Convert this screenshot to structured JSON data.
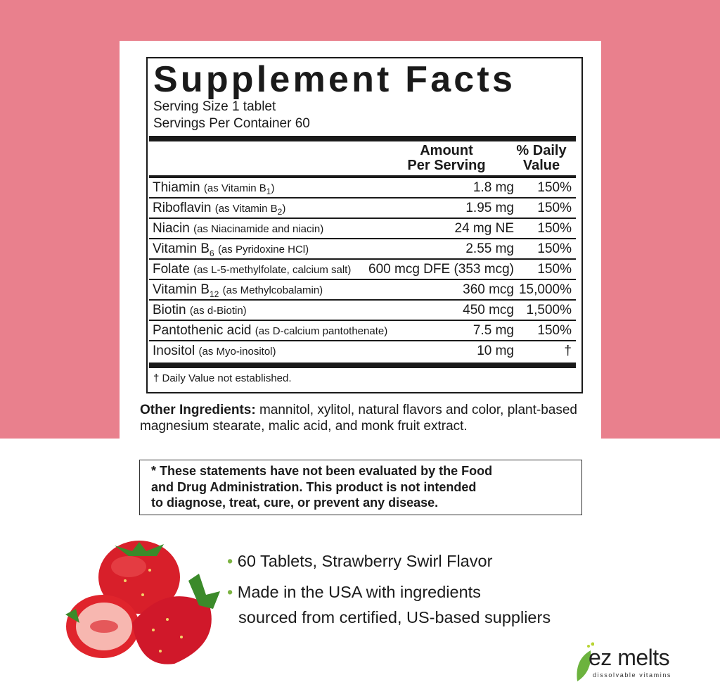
{
  "label": {
    "title": "Supplement Facts",
    "serving_size": "Serving Size 1 tablet",
    "servings_per_container": "Servings Per Container 60",
    "col_amount_1": "Amount",
    "col_amount_2": "Per Serving",
    "col_dv_1": "% Daily",
    "col_dv_2": "Value",
    "rows": [
      {
        "name": "Thiamin",
        "pre": "(as Vitamin B",
        "sub": "1",
        "post": ")",
        "amount": "1.8 mg",
        "dv": "150%"
      },
      {
        "name": "Riboflavin",
        "pre": "(as Vitamin B",
        "sub": "2",
        "post": ")",
        "amount": "1.95 mg",
        "dv": "150%"
      },
      {
        "name": "Niacin",
        "pre": "(as Niacinamide and niacin)",
        "sub": "",
        "post": "",
        "amount": "24 mg NE",
        "dv": "150%"
      },
      {
        "name": "Vitamin B",
        "namesub": "6",
        "pre": "(as Pyridoxine HCl)",
        "amount": "2.55 mg",
        "dv": "150%"
      },
      {
        "name": "Folate",
        "pre": "(as L-5-methylfolate, calcium salt)",
        "amount": "600 mcg DFE (353 mcg)",
        "dv": "150%"
      },
      {
        "name": "Vitamin B",
        "namesub": "12",
        "pre": "(as Methylcobalamin)",
        "amount": "360 mcg",
        "dv": "15,000%"
      },
      {
        "name": "Biotin",
        "pre": "(as d-Biotin)",
        "amount": "450 mcg",
        "dv": "1,500%"
      },
      {
        "name": "Pantothenic acid",
        "pre": "(as D-calcium pantothenate)",
        "amount": "7.5 mg",
        "dv": "150%"
      },
      {
        "name": "Inositol",
        "pre": "(as Myo-inositol)",
        "amount": "10 mg",
        "dv": "†"
      }
    ],
    "footnote": "† Daily Value not established."
  },
  "other_ingredients": {
    "label": "Other Ingredients:",
    "text": " mannitol, xylitol, natural flavors and color, plant-based magnesium stearate, malic acid, and monk fruit extract."
  },
  "disclaimer": {
    "lines": [
      "* These statements have not been evaluated by the Food",
      "and Drug Administration. This product is not intended",
      "to diagnose, treat, cure, or prevent any disease."
    ]
  },
  "bullets": [
    {
      "text": "60 Tablets, Strawberry Swirl Flavor"
    },
    {
      "text": "Made in the USA with ingredients",
      "text2": "sourced from certified, US-based suppliers"
    }
  ],
  "brand": {
    "name": "ez melts",
    "tagline": "dissolvable vitamins"
  },
  "colors": {
    "background_pink": "#e9808d",
    "accent_green": "#7cb342"
  }
}
